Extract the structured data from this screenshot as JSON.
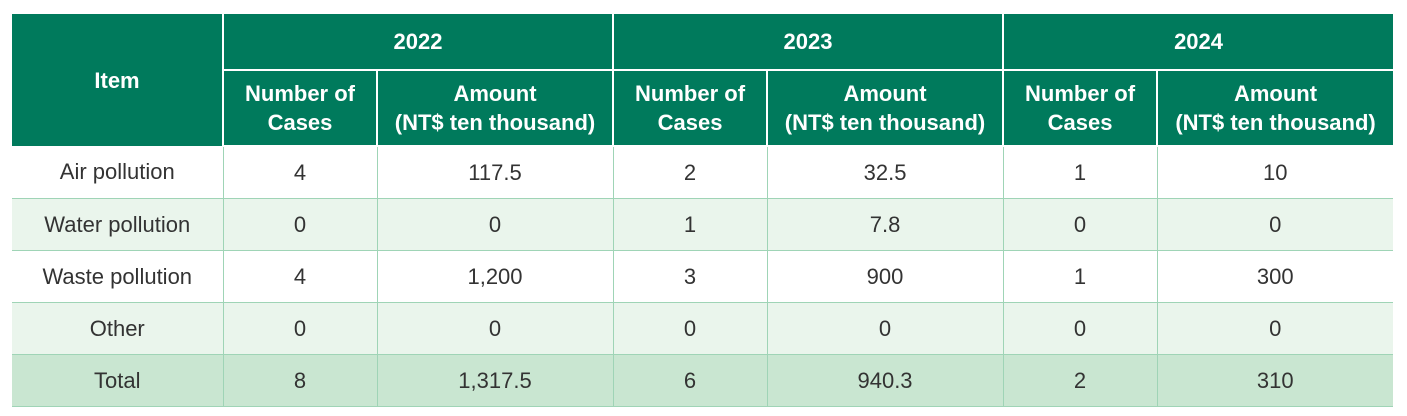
{
  "table": {
    "item_header": "Item",
    "years": [
      "2022",
      "2023",
      "2024"
    ],
    "sub_headers": {
      "cases": [
        "Number of",
        "Cases"
      ],
      "amount": [
        "Amount",
        "(NT$ ten thousand)"
      ]
    },
    "rows": [
      {
        "item": "Air pollution",
        "values": [
          "4",
          "117.5",
          "2",
          "32.5",
          "1",
          "10"
        ]
      },
      {
        "item": "Water pollution",
        "values": [
          "0",
          "0",
          "1",
          "7.8",
          "0",
          "0"
        ]
      },
      {
        "item": "Waste pollution",
        "values": [
          "4",
          "1,200",
          "3",
          "900",
          "1",
          "300"
        ]
      },
      {
        "item": "Other",
        "values": [
          "0",
          "0",
          "0",
          "0",
          "0",
          "0"
        ]
      },
      {
        "item": "Total",
        "values": [
          "8",
          "1,317.5",
          "6",
          "940.3",
          "2",
          "310"
        ]
      }
    ]
  },
  "colors": {
    "header_bg": "#007a5c",
    "header_text": "#ffffff",
    "row_light": "#eaf5ec",
    "row_total": "#c9e6d1",
    "grid": "#9fd4b6"
  }
}
